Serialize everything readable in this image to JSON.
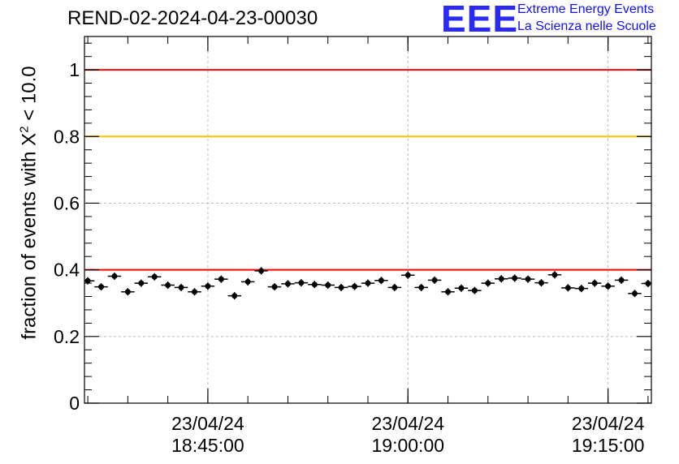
{
  "header": {
    "run_title": "REND-02-2024-04-23-00030",
    "logo_text": "EEE",
    "brand_line1": "Extreme Energy Events",
    "brand_line2": "La Scienza nelle Scuole"
  },
  "colors": {
    "logo": "#2a2af5",
    "brand_text": "#1010ff",
    "red_line": "#ff0000",
    "orange_line": "#ffc000",
    "grid": "#bbbbbb",
    "points": "#000000"
  },
  "chart_data": {
    "type": "scatter",
    "ylabel_prefix": "fraction of events with X",
    "ylabel_sup": "2",
    "ylabel_suffix": " < 10.0",
    "ylim": [
      0,
      1.1
    ],
    "y_ticks": [
      "0",
      "0.2",
      "0.4",
      "0.6",
      "0.8",
      "1"
    ],
    "x_ticks": [
      {
        "date": "23/04/24",
        "time": "18:45:00"
      },
      {
        "date": "23/04/24",
        "time": "19:00:00"
      },
      {
        "date": "23/04/24",
        "time": "19:15:00"
      }
    ],
    "xlim": [
      "18:35:45",
      "19:18:15"
    ],
    "grid": true,
    "reference_lines": [
      {
        "y": 1.0,
        "color": "#ff0000"
      },
      {
        "y": 0.8,
        "color": "#ffc000"
      },
      {
        "y": 0.4,
        "color": "#ff0000"
      }
    ],
    "series": [
      {
        "x": [
          "18:36:00",
          "18:37:00",
          "18:38:00",
          "18:39:00",
          "18:40:00",
          "18:41:00",
          "18:42:00",
          "18:43:00",
          "18:44:00",
          "18:45:00",
          "18:46:00",
          "18:47:00",
          "18:48:00",
          "18:49:00",
          "18:50:00",
          "18:51:00",
          "18:52:00",
          "18:53:00",
          "18:54:00",
          "18:55:00",
          "18:56:00",
          "18:57:00",
          "18:58:00",
          "18:59:00",
          "19:00:00",
          "19:01:00",
          "19:02:00",
          "19:03:00",
          "19:04:00",
          "19:05:00",
          "19:06:00",
          "19:07:00",
          "19:08:00",
          "19:09:00",
          "19:10:00",
          "19:11:00",
          "19:12:00",
          "19:13:00",
          "19:14:00",
          "19:15:00",
          "19:16:00",
          "19:17:00",
          "19:18:00"
        ],
        "values": [
          0.367,
          0.349,
          0.381,
          0.334,
          0.36,
          0.379,
          0.354,
          0.347,
          0.334,
          0.351,
          0.372,
          0.322,
          0.364,
          0.397,
          0.349,
          0.358,
          0.361,
          0.356,
          0.354,
          0.347,
          0.35,
          0.36,
          0.368,
          0.347,
          0.384,
          0.347,
          0.369,
          0.334,
          0.345,
          0.338,
          0.36,
          0.373,
          0.375,
          0.372,
          0.361,
          0.385,
          0.346,
          0.344,
          0.36,
          0.351,
          0.369,
          0.329,
          0.359
        ],
        "yerr": 0.011
      }
    ]
  }
}
